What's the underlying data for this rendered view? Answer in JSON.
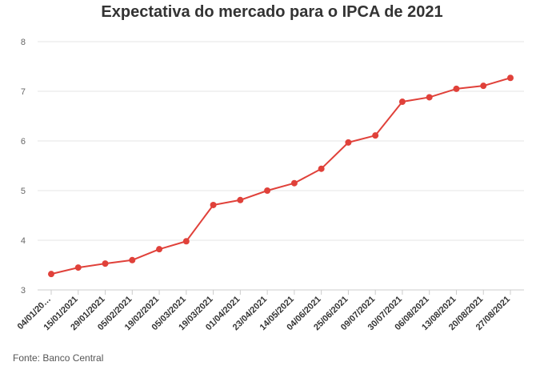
{
  "chart_data": {
    "type": "line",
    "title": "Expectativa do mercado para o IPCA de 2021",
    "source": "Fonte: Banco Central",
    "xlabel": "",
    "ylabel": "",
    "ylim": [
      3,
      8
    ],
    "yticks": [
      3,
      4,
      5,
      6,
      7,
      8
    ],
    "grid": true,
    "legend": "none",
    "categories": [
      "04/01/20…",
      "15/01/2021",
      "29/01/2021",
      "05/02/2021",
      "19/02/2021",
      "05/03/2021",
      "19/03/2021",
      "01/04/2021",
      "23/04/2021",
      "14/05/2021",
      "04/06/2021",
      "25/06/2021",
      "09/07/2021",
      "30/07/2021",
      "06/08/2021",
      "13/08/2021",
      "20/08/2021",
      "27/08/2021"
    ],
    "series": [
      {
        "color": "#e0413a",
        "values": [
          3.32,
          3.45,
          3.53,
          3.6,
          3.82,
          3.98,
          4.71,
          4.81,
          5.0,
          5.15,
          5.44,
          5.97,
          6.11,
          6.79,
          6.88,
          7.05,
          7.11,
          7.27
        ]
      }
    ]
  }
}
